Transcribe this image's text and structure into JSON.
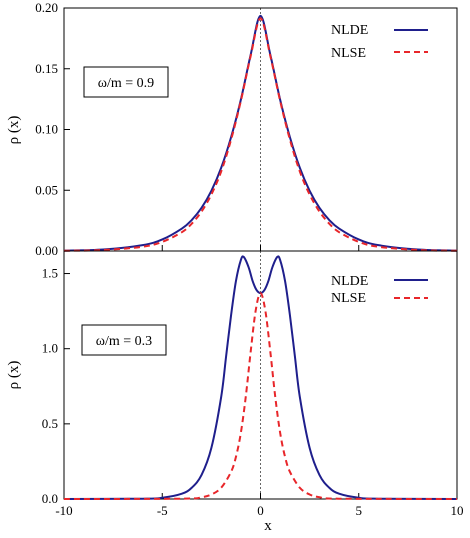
{
  "chart_data": [
    {
      "type": "line",
      "annotation": "ω/m = 0.9",
      "xlabel": "",
      "ylabel": "ρ (x)",
      "xlim": [
        -10,
        10
      ],
      "ylim": [
        0,
        0.2
      ],
      "yticks": [
        0.0,
        0.05,
        0.1,
        0.15,
        0.2
      ],
      "ytick_labels": [
        "0.00",
        "0.05",
        "0.10",
        "0.15",
        "0.20"
      ],
      "legend": "top-right",
      "series": [
        {
          "name": "NLDE",
          "color": "#1f1f8c",
          "style": "solid",
          "x": [
            -10,
            -8,
            -6,
            -5,
            -4,
            -3.5,
            -3,
            -2.5,
            -2,
            -1.5,
            -1,
            -0.5,
            0,
            0.5,
            1,
            1.5,
            2,
            2.5,
            3,
            3.5,
            4,
            5,
            6,
            8,
            10
          ],
          "y": [
            0.0003,
            0.0012,
            0.0048,
            0.0095,
            0.0185,
            0.0255,
            0.0355,
            0.0495,
            0.0685,
            0.0935,
            0.1245,
            0.1615,
            0.1935,
            0.1615,
            0.1245,
            0.0935,
            0.0685,
            0.0495,
            0.0355,
            0.0255,
            0.0185,
            0.0095,
            0.0048,
            0.0012,
            0.0003
          ]
        },
        {
          "name": "NLSE",
          "color": "#e8262a",
          "style": "dashed",
          "x": [
            -10,
            -8,
            -6,
            -5,
            -4,
            -3.5,
            -3,
            -2.5,
            -2,
            -1.5,
            -1,
            -0.5,
            0,
            0.5,
            1,
            1.5,
            2,
            2.5,
            3,
            3.5,
            4,
            5,
            6,
            8,
            10
          ],
          "y": [
            0.0002,
            0.0008,
            0.0035,
            0.0075,
            0.0155,
            0.0225,
            0.0325,
            0.0465,
            0.0655,
            0.0915,
            0.1235,
            0.1605,
            0.1915,
            0.1605,
            0.1235,
            0.0915,
            0.0655,
            0.0465,
            0.0325,
            0.0225,
            0.0155,
            0.0075,
            0.0035,
            0.0008,
            0.0002
          ]
        }
      ]
    },
    {
      "type": "line",
      "annotation": "ω/m = 0.3",
      "xlabel": "x",
      "ylabel": "ρ (x)",
      "xlim": [
        -10,
        10
      ],
      "ylim": [
        0,
        1.65
      ],
      "yticks": [
        0.0,
        0.5,
        1.0,
        1.5
      ],
      "ytick_labels": [
        "0.0",
        "0.5",
        "1.0",
        "1.5"
      ],
      "xticks": [
        -10,
        -5,
        0,
        5,
        10
      ],
      "xtick_labels": [
        "-10",
        "-5",
        "0",
        "5",
        "10"
      ],
      "legend": "top-right",
      "series": [
        {
          "name": "NLDE",
          "color": "#1f1f8c",
          "style": "solid",
          "x": [
            -10,
            -6,
            -5,
            -4,
            -3.5,
            -3,
            -2.5,
            -2,
            -1.75,
            -1.5,
            -1.25,
            -1,
            -0.85,
            -0.6,
            -0.4,
            -0.2,
            0,
            0.2,
            0.4,
            0.6,
            0.85,
            1,
            1.25,
            1.5,
            1.75,
            2,
            2.5,
            3,
            3.5,
            4,
            5,
            6,
            10
          ],
          "y": [
            0.0,
            0.002,
            0.008,
            0.035,
            0.075,
            0.16,
            0.34,
            0.68,
            0.95,
            1.22,
            1.45,
            1.59,
            1.61,
            1.54,
            1.45,
            1.39,
            1.37,
            1.39,
            1.45,
            1.54,
            1.61,
            1.59,
            1.45,
            1.22,
            0.95,
            0.68,
            0.34,
            0.16,
            0.075,
            0.035,
            0.008,
            0.002,
            0.0
          ]
        },
        {
          "name": "NLSE",
          "color": "#e8262a",
          "style": "dashed",
          "x": [
            -10,
            -4,
            -3,
            -2.5,
            -2,
            -1.5,
            -1.25,
            -1,
            -0.75,
            -0.5,
            -0.25,
            0,
            0.25,
            0.5,
            0.75,
            1,
            1.25,
            1.5,
            2,
            2.5,
            3,
            4,
            10
          ],
          "y": [
            0.0,
            0.002,
            0.012,
            0.03,
            0.075,
            0.18,
            0.28,
            0.44,
            0.68,
            0.98,
            1.25,
            1.37,
            1.25,
            0.98,
            0.68,
            0.44,
            0.28,
            0.18,
            0.075,
            0.03,
            0.012,
            0.002,
            0.0
          ]
        }
      ]
    }
  ]
}
